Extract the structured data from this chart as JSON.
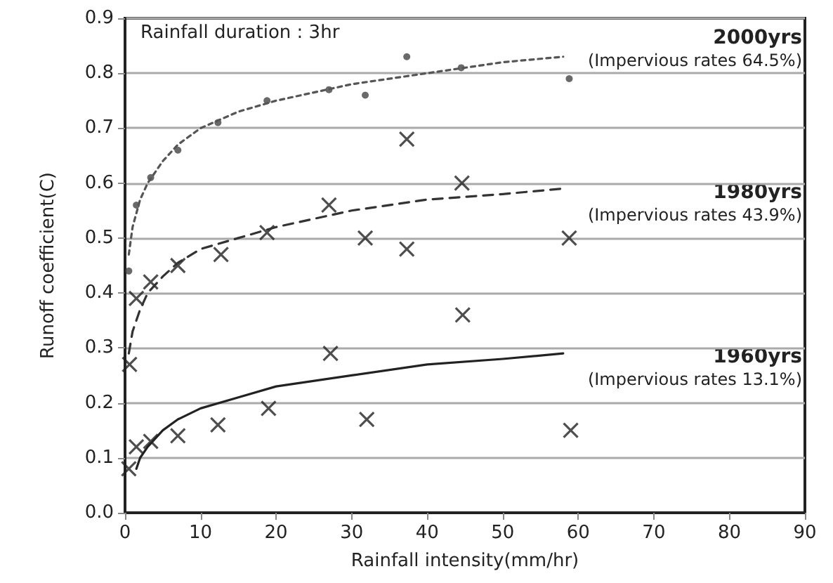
{
  "chart_data": {
    "type": "scatter",
    "xlabel": "Rainfall intensity(mm/hr)",
    "ylabel": "Runoff coefficient(C)",
    "xlim": [
      0,
      90
    ],
    "xticks": [
      0,
      10,
      20,
      30,
      40,
      50,
      60,
      70,
      80,
      90
    ],
    "ylim": [
      0,
      0.9
    ],
    "yticks": [
      {
        "value": 0,
        "label": "0.0"
      },
      {
        "value": 0.1,
        "label": "0.1"
      },
      {
        "value": 0.2,
        "label": "0.2"
      },
      {
        "value": 0.3,
        "label": "0.3"
      },
      {
        "value": 0.4,
        "label": "0.4"
      },
      {
        "value": 0.5,
        "label": "0.5"
      },
      {
        "value": 0.6,
        "label": "0.6"
      },
      {
        "value": 0.7,
        "label": "0.7"
      },
      {
        "value": 0.8,
        "label": "0.8"
      },
      {
        "value": 0.9,
        "label": "0.9"
      }
    ],
    "grid": "y",
    "series": [
      {
        "marker": "circle",
        "color": "#444444",
        "x": [
          0.5,
          1.5,
          3.4,
          7,
          12.3,
          18.8,
          27,
          31.8,
          37.3,
          44.5,
          58.8
        ],
        "values": [
          0.44,
          0.56,
          0.61,
          0.66,
          0.71,
          0.75,
          0.77,
          0.76,
          0.83,
          0.81,
          0.79
        ]
      },
      {
        "marker": "cross",
        "color": "#222222",
        "x": [
          0.6,
          1.5,
          3.4,
          7,
          12.7,
          18.8,
          27,
          31.8,
          37.3,
          44.6,
          58.8
        ],
        "values": [
          0.27,
          0.39,
          0.42,
          0.45,
          0.47,
          0.51,
          0.56,
          0.5,
          0.68,
          0.6,
          0.5
        ]
      },
      {
        "marker": "cross",
        "color": "#222222",
        "x": [
          0.5,
          1.5,
          3.4,
          7,
          12.3,
          19,
          27.2,
          32,
          37.3,
          44.7,
          59
        ],
        "values": [
          0.08,
          0.12,
          0.13,
          0.14,
          0.16,
          0.19,
          0.29,
          0.17,
          0.48,
          0.36,
          0.15
        ]
      },
      {
        "type": "line",
        "marker": "none",
        "line_style": "dotted",
        "color": "#555555",
        "x": [
          0.5,
          1,
          2,
          3,
          5,
          7,
          10,
          15,
          20,
          30,
          40,
          50,
          58
        ],
        "values": [
          0.47,
          0.52,
          0.57,
          0.6,
          0.64,
          0.67,
          0.7,
          0.73,
          0.75,
          0.78,
          0.8,
          0.82,
          0.83
        ]
      },
      {
        "type": "line",
        "marker": "none",
        "line_style": "dashed",
        "color": "#333333",
        "x": [
          0.5,
          1,
          2,
          3,
          5,
          7,
          10,
          15,
          20,
          30,
          40,
          50,
          58
        ],
        "values": [
          0.29,
          0.33,
          0.37,
          0.4,
          0.43,
          0.455,
          0.48,
          0.5,
          0.52,
          0.55,
          0.57,
          0.58,
          0.59
        ]
      },
      {
        "type": "line",
        "marker": "none",
        "line_style": "solid",
        "color": "#222222",
        "x": [
          1.5,
          2,
          3,
          5,
          7,
          10,
          15,
          20,
          30,
          40,
          50,
          58
        ],
        "values": [
          0.08,
          0.1,
          0.12,
          0.15,
          0.17,
          0.19,
          0.21,
          0.23,
          0.25,
          0.27,
          0.28,
          0.29
        ]
      }
    ],
    "annotations": [
      "Rainfall duration : 3hr",
      "2000yrs",
      "(Impervious rates 64.5%)",
      "1980yrs",
      "(Impervious rates 43.9%)",
      "1960yrs",
      "(Impervious rates 13.1%)"
    ]
  }
}
